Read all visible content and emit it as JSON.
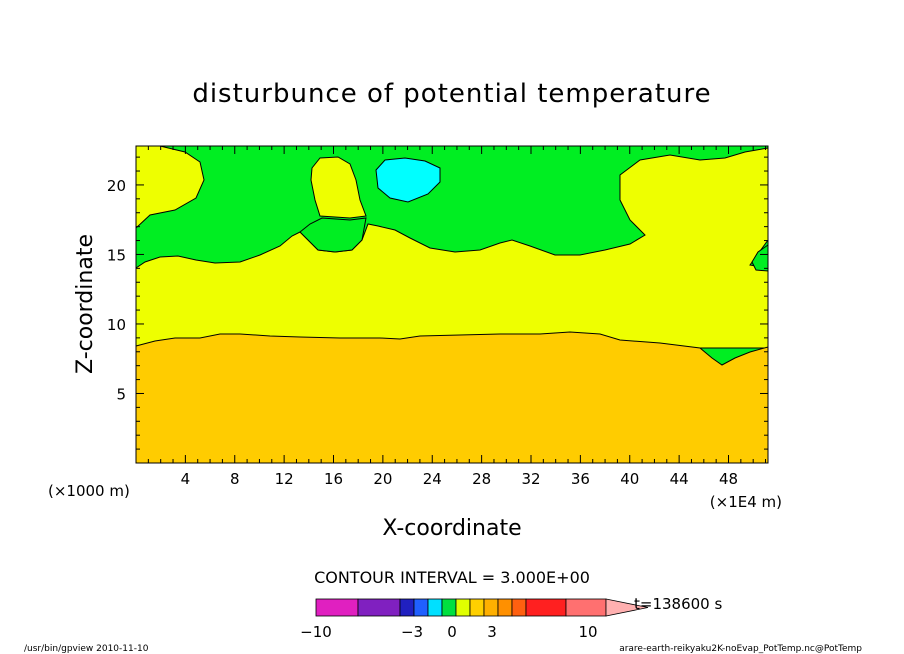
{
  "chart_data": {
    "type": "heatmap",
    "title": "disturbunce of potential temperature",
    "xlabel": "X-coordinate",
    "ylabel": "Z-coordinate",
    "x_unit_left": "(×1000 m)",
    "x_unit_right": "(×1E4 m)",
    "x_ticks": [
      "4",
      "8",
      "12",
      "16",
      "20",
      "24",
      "28",
      "32",
      "36",
      "40",
      "44",
      "48"
    ],
    "x_tick_values": [
      4,
      8,
      12,
      16,
      20,
      24,
      28,
      32,
      36,
      40,
      44,
      48
    ],
    "y_ticks": [
      "5",
      "10",
      "15",
      "20"
    ],
    "y_tick_values": [
      5,
      10,
      15,
      20
    ],
    "xlim": [
      0,
      51.2
    ],
    "ylim": [
      0,
      22.8
    ],
    "contour_interval_text": "CONTOUR INTERVAL = 3.000E+00",
    "time_text": "t=138600 s",
    "colorbar": {
      "labels": [
        "−10",
        "−3",
        "0",
        "3",
        "10"
      ],
      "label_values": [
        -10,
        -3,
        0,
        3,
        10
      ],
      "colors": [
        "#e020c0",
        "#8020c0",
        "#2020c0",
        "#2060ff",
        "#00e0ff",
        "#00e040",
        "#e0ff00",
        "#ffd000",
        "#ffb000",
        "#ff9000",
        "#ff6010",
        "#ff2020",
        "#ff7070",
        "#ffb0b0"
      ]
    },
    "regions": [
      {
        "name": "orange",
        "color": "#ffcc00",
        "z_top_approx": 9
      },
      {
        "name": "yellow",
        "color": "#eeff00",
        "z_range": [
          9,
          15
        ]
      },
      {
        "name": "green",
        "color": "#00ee22",
        "z_range": [
          15,
          22.8
        ]
      },
      {
        "name": "cyan",
        "color": "#00ffff",
        "center": [
          22,
          20.5
        ]
      }
    ]
  },
  "footer": {
    "left": "/usr/bin/gpview   2010-11-10",
    "right": "arare-earth-reikyaku2K-noEvap_PotTemp.nc@PotTemp"
  }
}
